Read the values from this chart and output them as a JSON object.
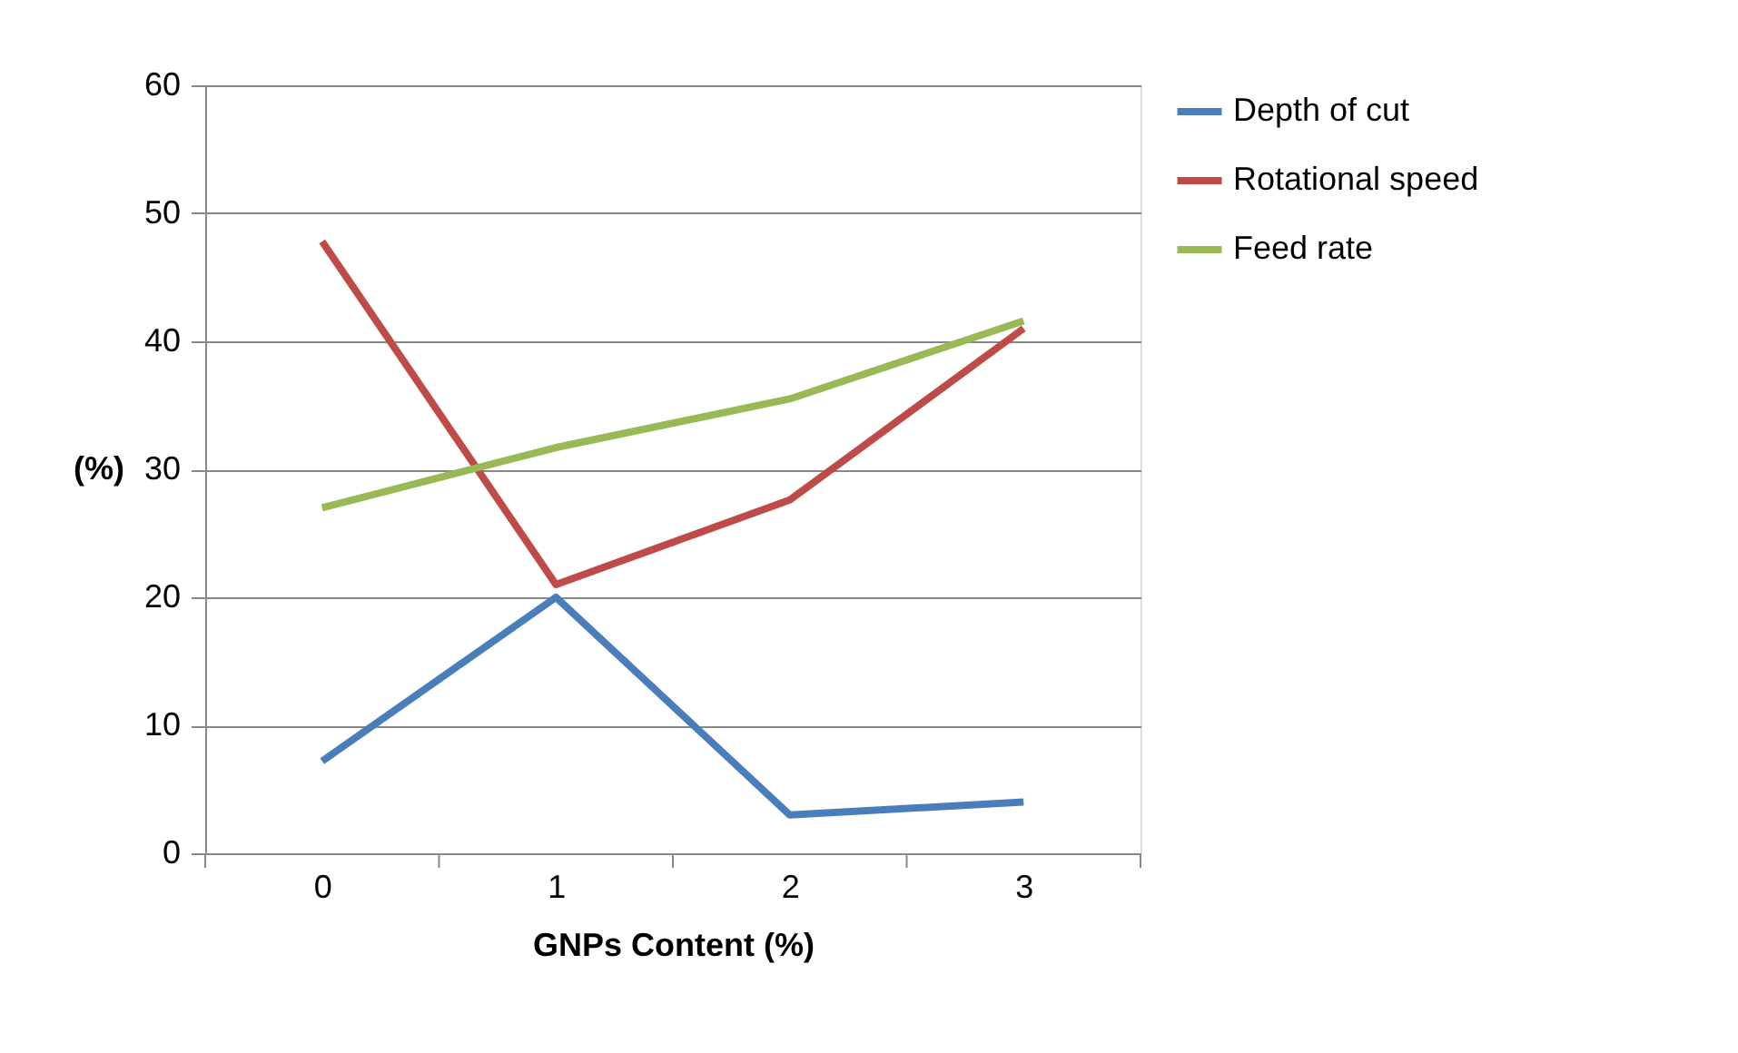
{
  "chart_data": {
    "type": "line",
    "xlabel": "GNPs Content (%)",
    "ylabel": "(%)",
    "categories": [
      "0",
      "1",
      "2",
      "3"
    ],
    "series": [
      {
        "name": "Depth of cut",
        "color": "#4a7ebb",
        "values": [
          7.2,
          20,
          3,
          4
        ]
      },
      {
        "name": "Rotational speed",
        "color": "#be4b48",
        "values": [
          47.8,
          21,
          27.6,
          41
        ]
      },
      {
        "name": "Feed rate",
        "color": "#98b954",
        "values": [
          27,
          31.7,
          35.5,
          41.6
        ]
      }
    ],
    "ylim": [
      0,
      60
    ],
    "yticks": [
      0,
      10,
      20,
      30,
      40,
      50,
      60
    ],
    "grid": "y",
    "legend": "right",
    "marker": "none",
    "line_style": "solid"
  }
}
